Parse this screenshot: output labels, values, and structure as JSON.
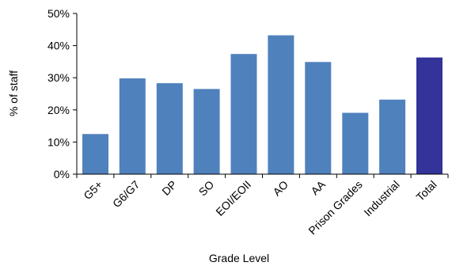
{
  "chart_data": {
    "type": "bar",
    "title": "",
    "xlabel": "Grade Level",
    "ylabel": "% of staff",
    "categories": [
      "G5+",
      "G6/G7",
      "DP",
      "SO",
      "EOI/EOII",
      "AO",
      "AA",
      "Prison Grades",
      "Industrial",
      "Total"
    ],
    "series": [
      {
        "values": [
          12.5,
          29.8,
          28.3,
          26.5,
          37.4,
          43.2,
          34.9,
          19.1,
          23.2,
          36.3
        ]
      }
    ],
    "ylim": [
      0,
      50
    ],
    "yticks": [
      "0%",
      "10%",
      "20%",
      "30%",
      "40%",
      "50%"
    ],
    "grid": false,
    "legend": "none",
    "colors": {
      "bar": "#4F81BD",
      "highlight": "#333399",
      "axis": "#000000"
    },
    "highlight_category": "Total"
  }
}
